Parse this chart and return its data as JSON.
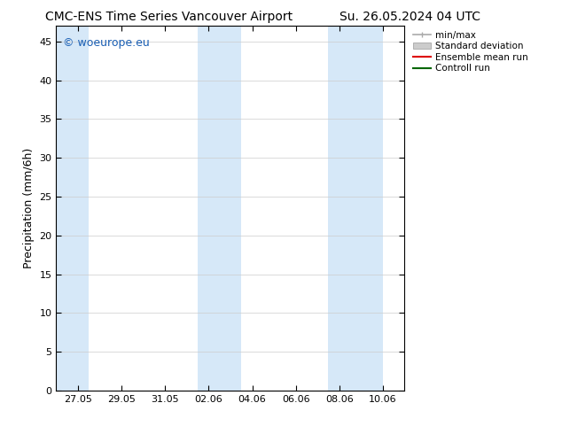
{
  "title_left": "CMC-ENS Time Series Vancouver Airport",
  "title_right": "Su. 26.05.2024 04 UTC",
  "ylabel": "Precipitation (mm/6h)",
  "ylim": [
    0,
    47
  ],
  "yticks": [
    0,
    5,
    10,
    15,
    20,
    25,
    30,
    35,
    40,
    45
  ],
  "xtick_labels": [
    "27.05",
    "29.05",
    "31.05",
    "02.06",
    "04.06",
    "06.06",
    "08.06",
    "10.06"
  ],
  "xtick_positions": [
    1,
    3,
    5,
    7,
    9,
    11,
    13,
    15
  ],
  "xlim": [
    0,
    16
  ],
  "shaded_bands": [
    {
      "x_start": 0.0,
      "x_end": 1.5
    },
    {
      "x_start": 6.5,
      "x_end": 7.5
    },
    {
      "x_start": 7.5,
      "x_end": 8.5
    },
    {
      "x_start": 12.5,
      "x_end": 13.5
    },
    {
      "x_start": 13.5,
      "x_end": 15.0
    }
  ],
  "band_color": "#d6e8f8",
  "background_color": "#ffffff",
  "watermark_text": "© woeurope.eu",
  "watermark_color": "#1a5fb4",
  "legend_items": [
    {
      "label": "min/max",
      "color": "#aaaaaa",
      "lw": 1.2
    },
    {
      "label": "Standard deviation",
      "color": "#cccccc",
      "lw": 6
    },
    {
      "label": "Ensemble mean run",
      "color": "#dd0000",
      "lw": 1.5
    },
    {
      "label": "Controll run",
      "color": "#006600",
      "lw": 1.5
    }
  ],
  "title_fontsize": 10,
  "ylabel_fontsize": 9,
  "tick_fontsize": 8,
  "watermark_fontsize": 9,
  "legend_fontsize": 7.5,
  "grid_color": "#cccccc",
  "spine_color": "#000000",
  "fig_width": 6.34,
  "fig_height": 4.9,
  "dpi": 100
}
